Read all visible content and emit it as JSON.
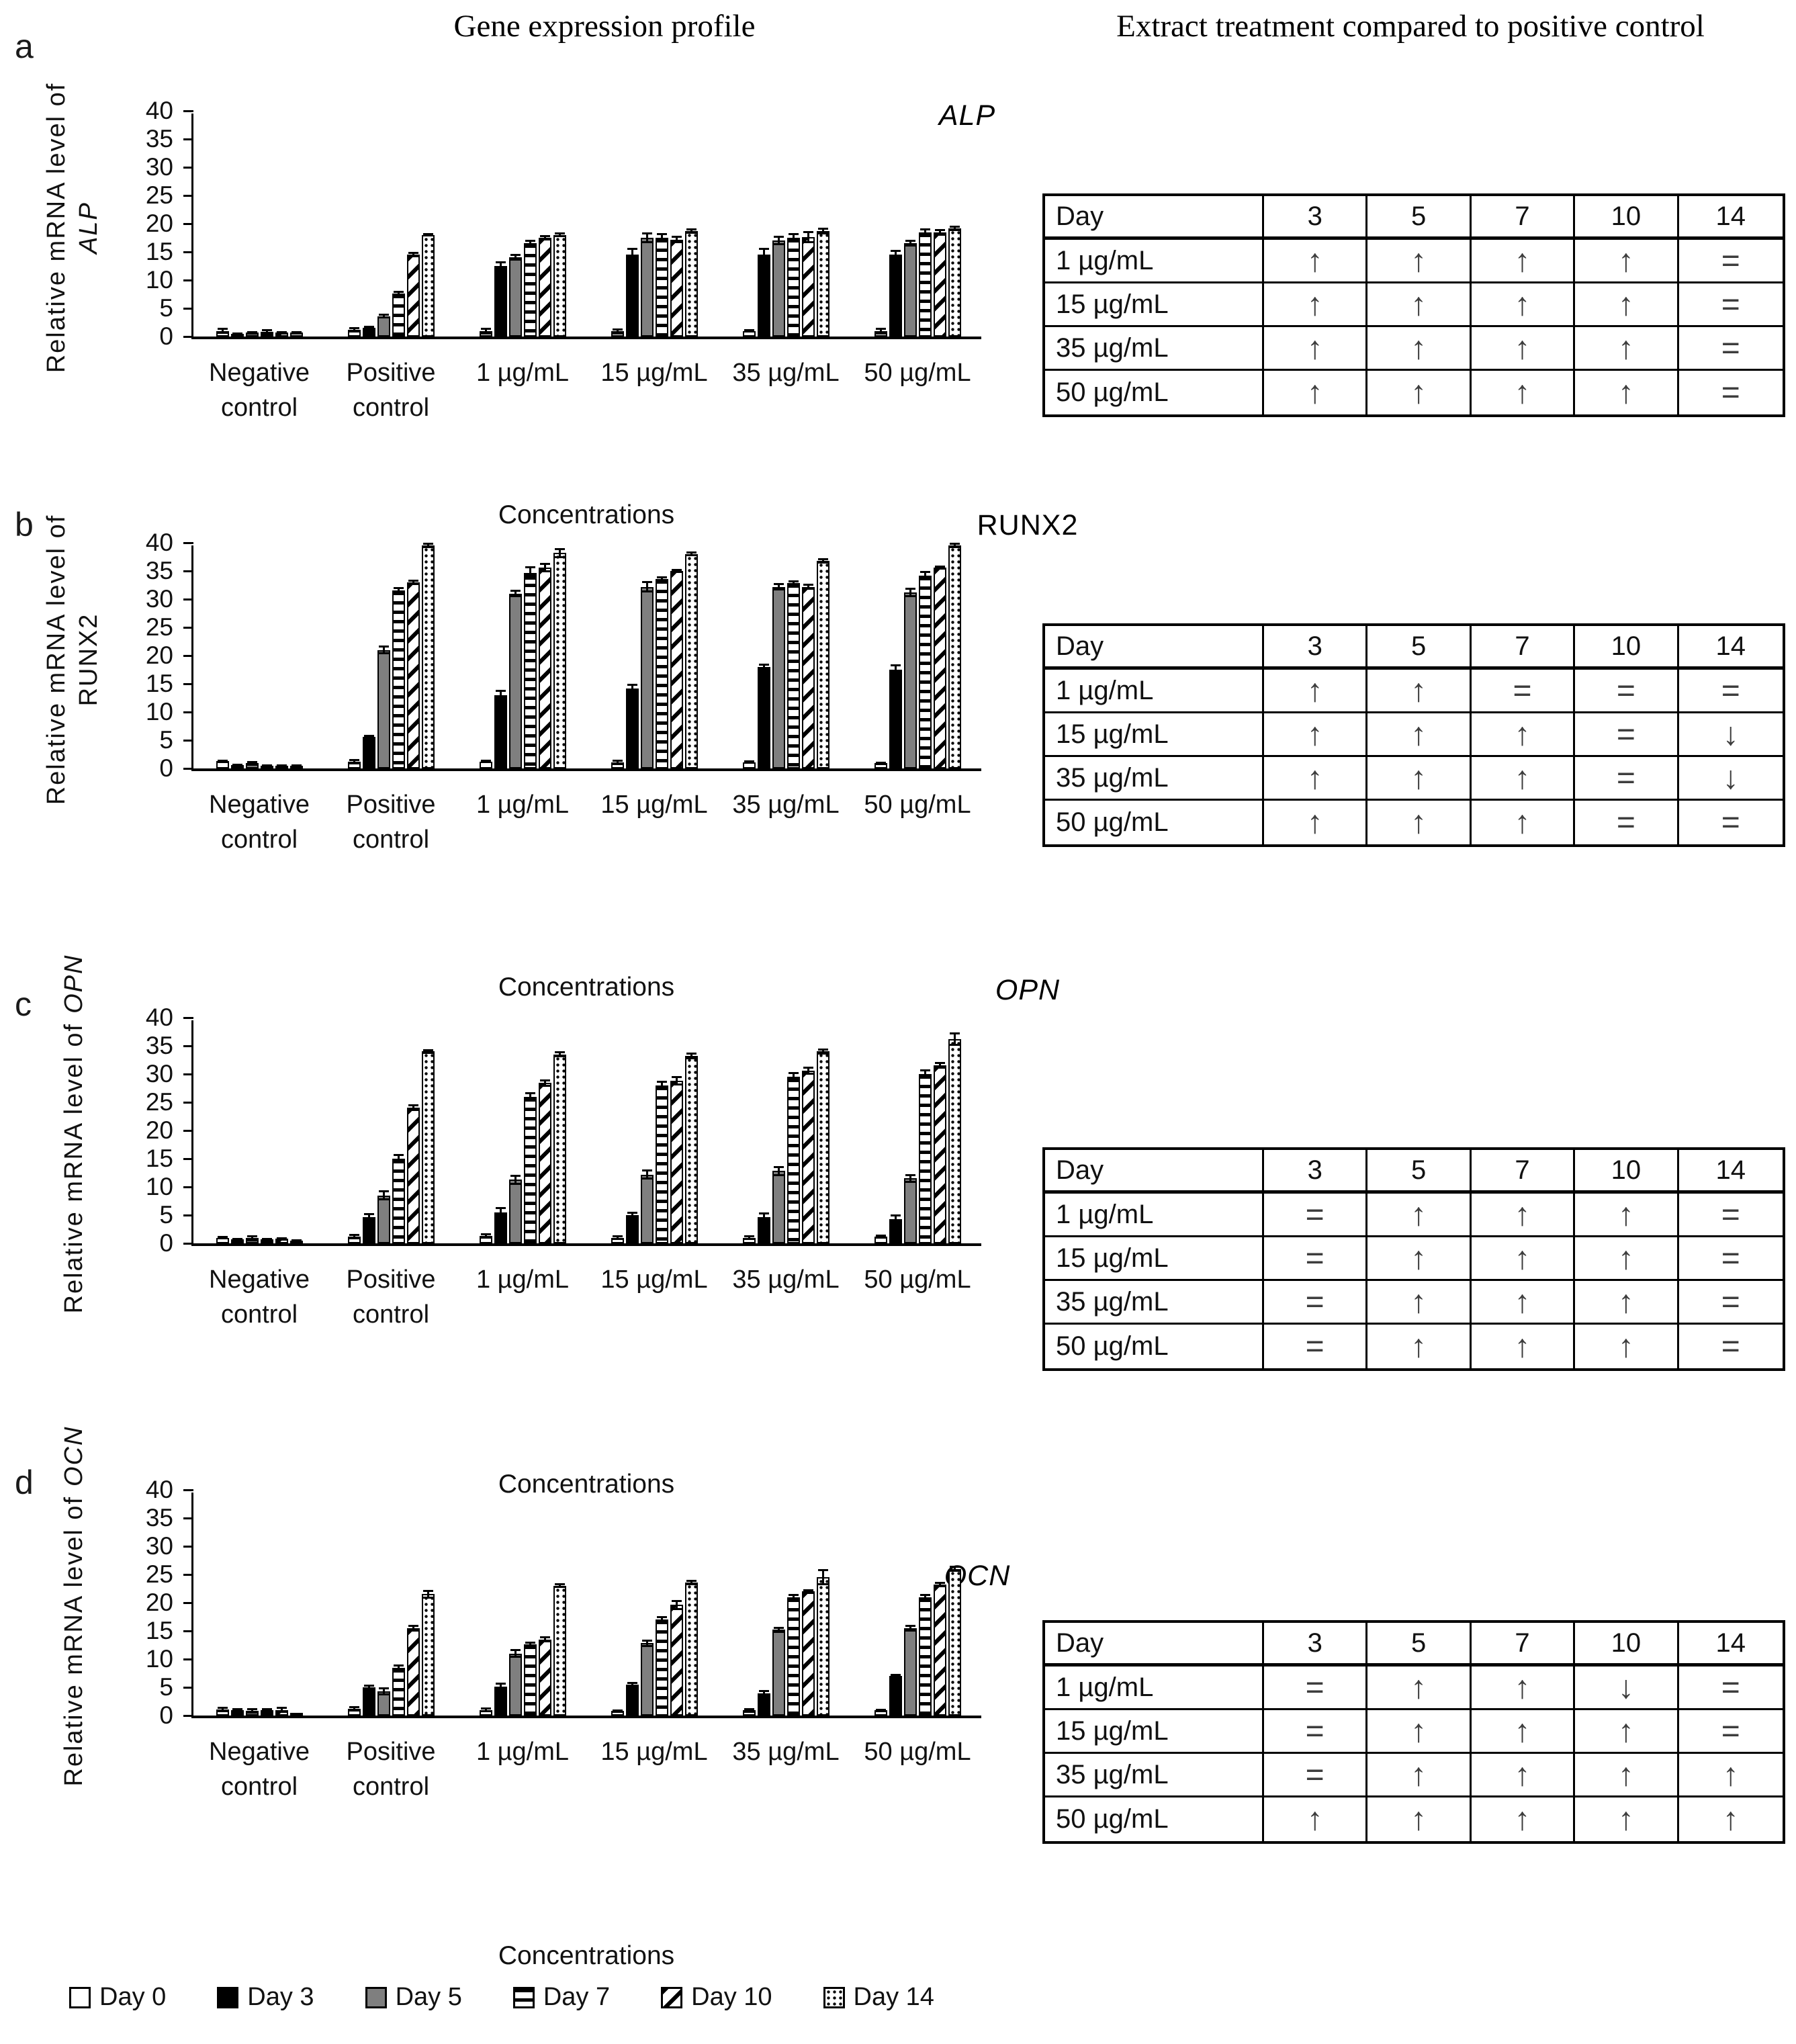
{
  "header": {
    "left": "Gene expression profile",
    "right": "Extract treatment compared to positive control"
  },
  "table_header": [
    "Day",
    "3",
    "5",
    "7",
    "10",
    "14"
  ],
  "legend": {
    "items": [
      {
        "label": "Day 0",
        "pattern": "open-white-swatch"
      },
      {
        "label": "Day 3",
        "pattern": "solid-black-swatch"
      },
      {
        "label": "Day 5",
        "pattern": "solid-gray-swatch"
      },
      {
        "label": "Day 7",
        "pattern": "horizontal-lines-swatch"
      },
      {
        "label": "Day 10",
        "pattern": "diagonal-stripes-swatch"
      },
      {
        "label": "Day 14",
        "pattern": "dotted-swatch"
      }
    ]
  },
  "panels": [
    {
      "letter": "a",
      "title": "ALP",
      "title_italic": true,
      "ylabel_prefix": "Relative mRNA level of",
      "gene": "ALP",
      "gene_italic": true,
      "table_rows": [
        {
          "label": "1 µg/mL",
          "cells": [
            "↑",
            "↑",
            "↑",
            "↑",
            "="
          ]
        },
        {
          "label": "15 µg/mL",
          "cells": [
            "↑",
            "↑",
            "↑",
            "↑",
            "="
          ]
        },
        {
          "label": "35 µg/mL",
          "cells": [
            "↑",
            "↑",
            "↑",
            "↑",
            "="
          ]
        },
        {
          "label": "50 µg/mL",
          "cells": [
            "↑",
            "↑",
            "↑",
            "↑",
            "="
          ]
        }
      ]
    },
    {
      "letter": "b",
      "title": "RUNX2",
      "title_italic": false,
      "ylabel_prefix": "Relative mRNA level of",
      "gene": "RUNX2",
      "gene_italic": false,
      "table_rows": [
        {
          "label": "1 µg/mL",
          "cells": [
            "↑",
            "↑",
            "=",
            "=",
            "="
          ]
        },
        {
          "label": "15 µg/mL",
          "cells": [
            "↑",
            "↑",
            "↑",
            "=",
            "↓"
          ]
        },
        {
          "label": "35 µg/mL",
          "cells": [
            "↑",
            "↑",
            "↑",
            "=",
            "↓"
          ]
        },
        {
          "label": "50 µg/mL",
          "cells": [
            "↑",
            "↑",
            "↑",
            "=",
            "="
          ]
        }
      ]
    },
    {
      "letter": "c",
      "title": "OPN",
      "title_italic": true,
      "ylabel_prefix": "Relative mRNA level of",
      "gene": "OPN",
      "gene_italic": true,
      "table_rows": [
        {
          "label": "1 µg/mL",
          "cells": [
            "=",
            "↑",
            "↑",
            "↑",
            "="
          ]
        },
        {
          "label": "15 µg/mL",
          "cells": [
            "=",
            "↑",
            "↑",
            "↑",
            "="
          ]
        },
        {
          "label": "35 µg/mL",
          "cells": [
            "=",
            "↑",
            "↑",
            "↑",
            "="
          ]
        },
        {
          "label": "50 µg/mL",
          "cells": [
            "=",
            "↑",
            "↑",
            "↑",
            "="
          ]
        }
      ]
    },
    {
      "letter": "d",
      "title": "OCN",
      "title_italic": true,
      "ylabel_prefix": "Relative mRNA level of",
      "gene": "OCN",
      "gene_italic": true,
      "table_rows": [
        {
          "label": "1 µg/mL",
          "cells": [
            "=",
            "↑",
            "↑",
            "↓",
            "="
          ]
        },
        {
          "label": "15 µg/mL",
          "cells": [
            "=",
            "↑",
            "↑",
            "↑",
            "="
          ]
        },
        {
          "label": "35 µg/mL",
          "cells": [
            "=",
            "↑",
            "↑",
            "↑",
            "↑"
          ]
        },
        {
          "label": "50 µg/mL",
          "cells": [
            "↑",
            "↑",
            "↑",
            "↑",
            "↑"
          ]
        }
      ]
    }
  ],
  "chart_data": [
    {
      "type": "bar",
      "title": "ALP",
      "ylabel": "Relative mRNA level of ALP",
      "xlabel": "Concentrations",
      "ylim": [
        0,
        40
      ],
      "ytick_step": 5,
      "grid": false,
      "legend_position": "bottom",
      "categories": [
        "Negative control",
        "Positive control",
        "1 µg/mL",
        "15 µg/mL",
        "35 µg/mL",
        "50 µg/mL"
      ],
      "series": [
        {
          "name": "Day 0",
          "values": [
            1.0,
            1.2,
            0.9,
            0.9,
            1.0,
            0.9
          ],
          "errors": [
            0.5,
            0.5,
            0.6,
            0.5,
            0.3,
            0.6
          ]
        },
        {
          "name": "Day 3",
          "values": [
            0.5,
            1.6,
            12.5,
            14.5,
            14.5,
            14.5
          ],
          "errors": [
            0.2,
            0.3,
            0.8,
            1.2,
            1.2,
            0.9
          ]
        },
        {
          "name": "Day 5",
          "values": [
            0.7,
            3.6,
            14.0,
            17.5,
            17.0,
            16.5
          ],
          "errors": [
            0.3,
            0.4,
            0.6,
            0.9,
            0.8,
            0.6
          ]
        },
        {
          "name": "Day 7",
          "values": [
            0.8,
            7.6,
            16.6,
            17.5,
            17.5,
            18.5
          ],
          "errors": [
            0.5,
            0.5,
            0.6,
            0.8,
            0.8,
            0.7
          ]
        },
        {
          "name": "Day 10",
          "values": [
            0.7,
            14.5,
            17.5,
            17.2,
            17.6,
            18.5
          ],
          "errors": [
            0.3,
            0.5,
            0.5,
            0.6,
            1.1,
            0.6
          ]
        },
        {
          "name": "Day 14",
          "values": [
            0.7,
            18.0,
            18.0,
            18.7,
            18.7,
            19.2
          ],
          "errors": [
            0.3,
            0.3,
            0.4,
            0.5,
            0.6,
            0.5
          ]
        }
      ]
    },
    {
      "type": "bar",
      "title": "RUNX2",
      "ylabel": "Relative mRNA level of RUNX2",
      "xlabel": "Concentrations",
      "ylim": [
        0,
        40
      ],
      "ytick_step": 5,
      "grid": false,
      "legend_position": "bottom",
      "categories": [
        "Negative control",
        "Positive control",
        "1 µg/mL",
        "15 µg/mL",
        "35 µg/mL",
        "50 µg/mL"
      ],
      "series": [
        {
          "name": "Day 0",
          "values": [
            1.3,
            1.2,
            1.2,
            1.1,
            1.1,
            0.9
          ],
          "errors": [
            0.3,
            0.5,
            0.3,
            0.5,
            0.3,
            0.3
          ]
        },
        {
          "name": "Day 3",
          "values": [
            0.6,
            5.6,
            13.0,
            14.2,
            18.0,
            17.5
          ],
          "errors": [
            0.2,
            0.4,
            0.9,
            0.8,
            0.6,
            1.0
          ]
        },
        {
          "name": "Day 5",
          "values": [
            0.9,
            21.0,
            31.0,
            32.2,
            32.2,
            31.2
          ],
          "errors": [
            0.4,
            0.8,
            0.7,
            1.0,
            0.6,
            0.8
          ]
        },
        {
          "name": "Day 7",
          "values": [
            0.5,
            31.6,
            34.6,
            33.6,
            32.8,
            34.2
          ],
          "errors": [
            0.2,
            0.5,
            1.2,
            0.5,
            0.5,
            0.8
          ]
        },
        {
          "name": "Day 10",
          "values": [
            0.5,
            33.0,
            35.6,
            35.0,
            32.2,
            35.6
          ],
          "errors": [
            0.2,
            0.5,
            0.8,
            0.4,
            0.5,
            0.4
          ]
        },
        {
          "name": "Day 14",
          "values": [
            0.5,
            39.5,
            38.2,
            38.0,
            36.8,
            39.5
          ],
          "errors": [
            0.2,
            0.5,
            0.9,
            0.4,
            0.5,
            0.5
          ]
        }
      ]
    },
    {
      "type": "bar",
      "title": "OPN",
      "ylabel": "Relative mRNA level of OPN",
      "xlabel": "Concentrations",
      "ylim": [
        0,
        40
      ],
      "ytick_step": 5,
      "grid": false,
      "legend_position": "bottom",
      "categories": [
        "Negative control",
        "Positive control",
        "1 µg/mL",
        "15 µg/mL",
        "35 µg/mL",
        "50 µg/mL"
      ],
      "series": [
        {
          "name": "Day 0",
          "values": [
            1.0,
            1.2,
            1.3,
            1.0,
            1.0,
            1.2
          ],
          "errors": [
            0.3,
            0.5,
            0.5,
            0.4,
            0.4,
            0.4
          ]
        },
        {
          "name": "Day 3",
          "values": [
            0.7,
            4.6,
            5.5,
            5.0,
            4.6,
            4.3
          ],
          "errors": [
            0.3,
            0.8,
            0.9,
            0.6,
            0.9,
            0.8
          ]
        },
        {
          "name": "Day 5",
          "values": [
            0.9,
            8.5,
            11.3,
            12.2,
            12.8,
            11.5
          ],
          "errors": [
            0.5,
            0.9,
            0.9,
            0.9,
            0.9,
            0.8
          ]
        },
        {
          "name": "Day 7",
          "values": [
            0.7,
            15.0,
            26.0,
            28.0,
            29.5,
            30.0
          ],
          "errors": [
            0.3,
            0.8,
            0.8,
            0.8,
            0.9,
            0.8
          ]
        },
        {
          "name": "Day 10",
          "values": [
            0.8,
            24.0,
            28.4,
            28.8,
            30.6,
            31.5
          ],
          "errors": [
            0.3,
            0.6,
            0.7,
            0.8,
            0.7,
            0.6
          ]
        },
        {
          "name": "Day 14",
          "values": [
            0.5,
            34.0,
            33.5,
            33.2,
            34.0,
            36.2
          ],
          "errors": [
            0.2,
            0.4,
            0.5,
            0.6,
            0.5,
            1.2
          ]
        }
      ]
    },
    {
      "type": "bar",
      "title": "OCN",
      "ylabel": "Relative mRNA level of OCN",
      "xlabel": "Concentrations",
      "ylim": [
        0,
        40
      ],
      "ytick_step": 5,
      "grid": false,
      "legend_position": "bottom",
      "categories": [
        "Negative control",
        "Positive control",
        "1 µg/mL",
        "15 µg/mL",
        "35 µg/mL",
        "50 µg/mL"
      ],
      "series": [
        {
          "name": "Day 0",
          "values": [
            1.1,
            1.2,
            1.0,
            0.8,
            0.9,
            0.9
          ],
          "errors": [
            0.5,
            0.5,
            0.4,
            0.3,
            0.4,
            0.3
          ]
        },
        {
          "name": "Day 3",
          "values": [
            0.9,
            5.0,
            5.1,
            5.5,
            3.9,
            7.0
          ],
          "errors": [
            0.4,
            0.5,
            0.7,
            0.4,
            0.6,
            0.4
          ]
        },
        {
          "name": "Day 5",
          "values": [
            0.8,
            4.3,
            11.0,
            12.8,
            15.2,
            15.5
          ],
          "errors": [
            0.5,
            0.7,
            0.8,
            0.7,
            0.5,
            0.6
          ]
        },
        {
          "name": "Day 7",
          "values": [
            0.9,
            8.5,
            12.6,
            17.0,
            21.0,
            21.0
          ],
          "errors": [
            0.4,
            0.5,
            0.5,
            0.6,
            0.5,
            0.5
          ]
        },
        {
          "name": "Day 10",
          "values": [
            1.0,
            15.5,
            13.5,
            19.6,
            22.0,
            23.2
          ],
          "errors": [
            0.5,
            0.6,
            0.5,
            0.9,
            0.4,
            0.5
          ]
        },
        {
          "name": "Day 14",
          "values": [
            0.3,
            21.5,
            23.0,
            23.6,
            24.5,
            26.0
          ],
          "errors": [
            0.2,
            0.8,
            0.4,
            0.5,
            1.4,
            0.5
          ]
        }
      ]
    }
  ]
}
